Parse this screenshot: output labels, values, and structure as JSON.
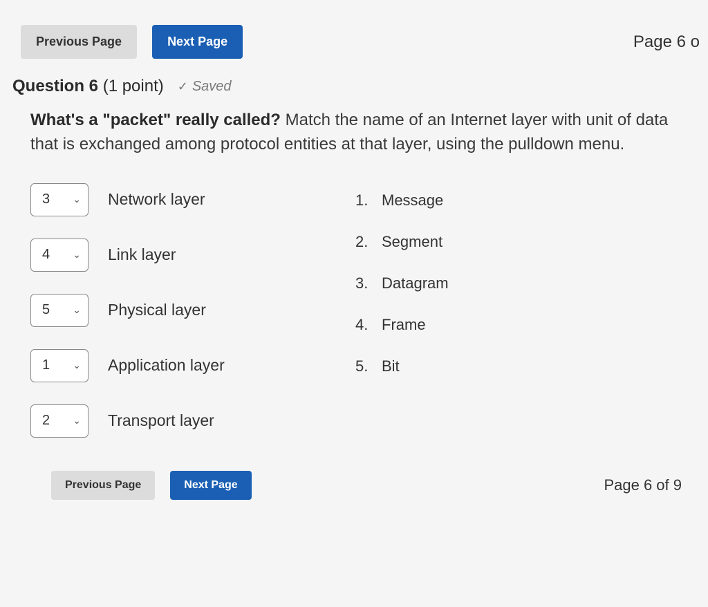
{
  "colors": {
    "background": "#f5f5f5",
    "text": "#2b2b2b",
    "muted": "#7a7a7a",
    "btn_prev_bg": "#dcdcdc",
    "btn_next_bg": "#1a5fb4",
    "btn_next_text": "#ffffff",
    "dropdown_border": "#888888",
    "dropdown_bg": "#ffffff"
  },
  "nav": {
    "prev_label": "Previous Page",
    "next_label": "Next Page",
    "page_indicator_top": "Page 6 o",
    "page_indicator_bottom": "Page 6 of 9"
  },
  "question": {
    "title_prefix": "Question 6",
    "points": "(1 point)",
    "saved_label": "Saved",
    "prompt_lead": "What's a \"packet\" really called?",
    "prompt_rest": " Match the name of an Internet layer with unit of data that is exchanged among protocol entities at that layer, using the pulldown menu."
  },
  "match": {
    "rows": [
      {
        "value": "3",
        "label": "Network layer"
      },
      {
        "value": "4",
        "label": "Link layer"
      },
      {
        "value": "5",
        "label": "Physical layer"
      },
      {
        "value": "1",
        "label": "Application layer"
      },
      {
        "value": "2",
        "label": "Transport layer"
      }
    ],
    "options": [
      {
        "num": "1.",
        "text": "Message"
      },
      {
        "num": "2.",
        "text": "Segment"
      },
      {
        "num": "3.",
        "text": "Datagram"
      },
      {
        "num": "4.",
        "text": "Frame"
      },
      {
        "num": "5.",
        "text": "Bit"
      }
    ]
  }
}
